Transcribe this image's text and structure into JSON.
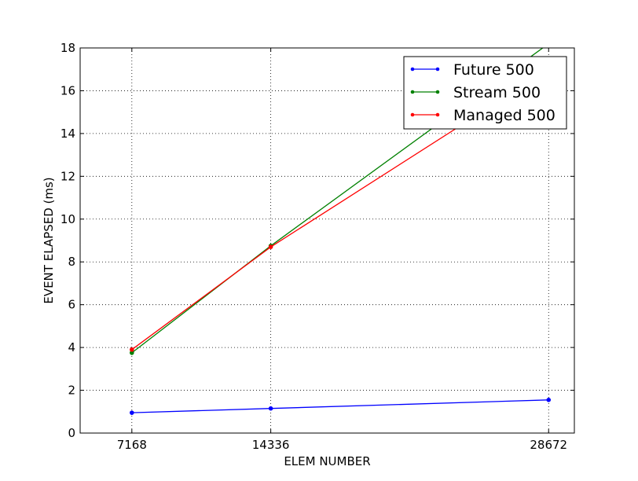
{
  "chart_data": {
    "type": "line",
    "xlabel": "ELEM NUMBER",
    "ylabel": "EVENT ELAPSED (ms)",
    "x": [
      7168,
      14336,
      28672
    ],
    "xticks": [
      "7168",
      "14336",
      "28672"
    ],
    "xlim": [
      4500,
      30000
    ],
    "ylim": [
      0,
      18
    ],
    "yticks": [
      0,
      2,
      4,
      6,
      8,
      10,
      12,
      14,
      16,
      18
    ],
    "grid": true,
    "legend_position": "top-right",
    "series": [
      {
        "name": "Future 500",
        "color": "#0000ff",
        "values": [
          0.95,
          1.15,
          1.55
        ]
      },
      {
        "name": "Stream 500",
        "color": "#008000",
        "values": [
          3.75,
          8.75,
          18.2
        ]
      },
      {
        "name": "Managed 500",
        "color": "#ff0000",
        "values": [
          3.9,
          8.7,
          17.0
        ]
      }
    ]
  }
}
